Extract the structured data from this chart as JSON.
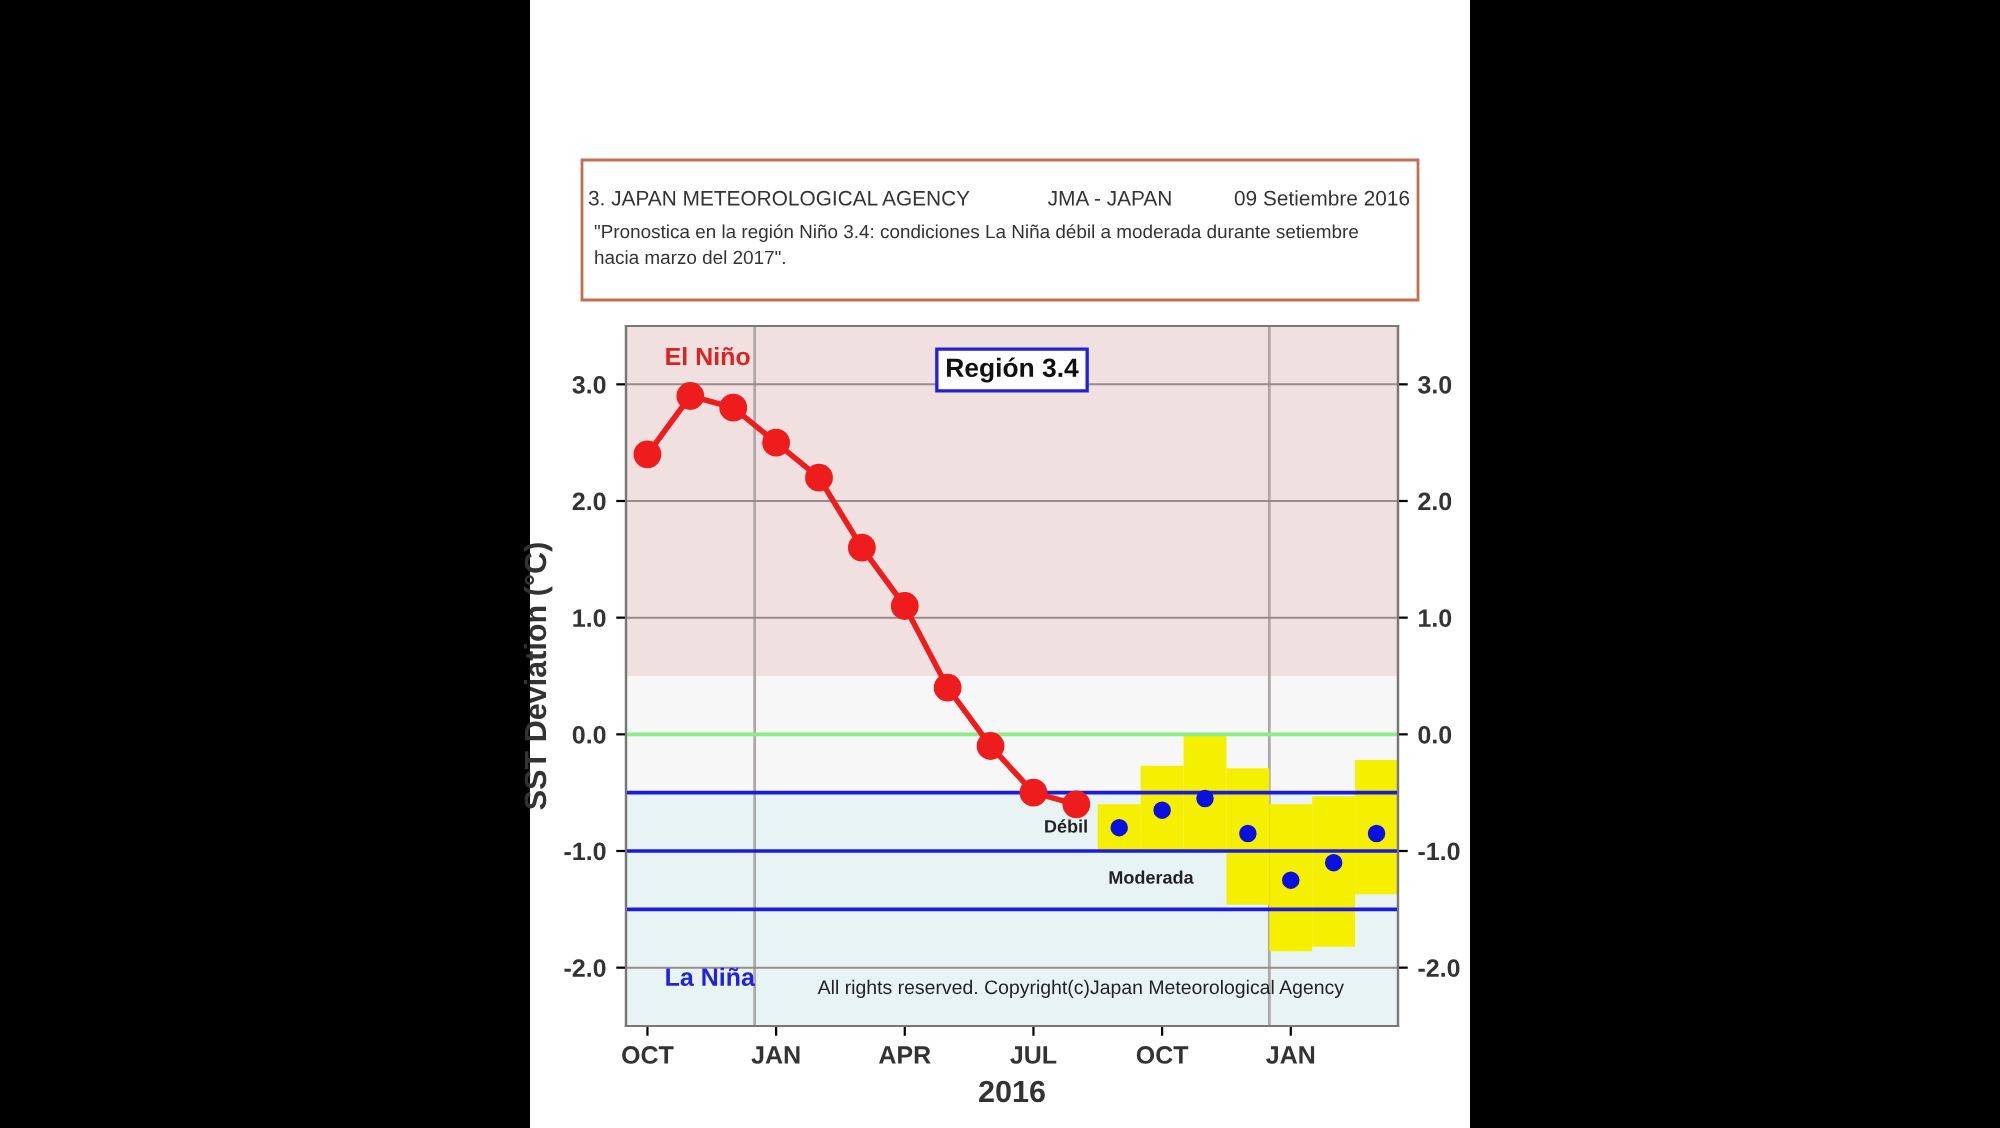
{
  "chart_data": {
    "type": "line",
    "title": "3. JAPAN METEOROLOGICAL AGENCY",
    "subtitle": "\"Pronostica en la región Niño 3.4: condiciones La Niña débil a moderada durante setiembre\nhacia marzo del 2017\".",
    "annotations": [
      "JMA - JAPAN",
      "09 Setiembre 2016",
      "Región 3.4",
      "All rights reserved. Copyright(c)Japan Meteorological Agency",
      "Débil",
      "Moderada"
    ],
    "xlabel": "2016",
    "ylabel": "SST Deviation (°C)",
    "categories": [
      "OCT",
      null,
      null,
      "JAN",
      null,
      null,
      "APR",
      null,
      null,
      "JUL",
      null,
      null,
      "OCT",
      null,
      null,
      "JAN",
      null,
      null
    ],
    "ylim": [
      -2.5,
      3.5
    ],
    "yticks": [
      {
        "value": -2,
        "label": "-2.0"
      },
      {
        "value": -1,
        "label": "-1.0"
      },
      {
        "value": 0,
        "label": "0.0"
      },
      {
        "value": 1,
        "label": "1.0"
      },
      {
        "value": 2,
        "label": "2.0"
      },
      {
        "value": 3,
        "label": "3.0"
      }
    ],
    "y2lim": [
      -2.5,
      3.5
    ],
    "y2ticks": [
      {
        "value": -2,
        "label": "-2.0"
      },
      {
        "value": -1,
        "label": "-1.0"
      },
      {
        "value": 0,
        "label": "0.0"
      },
      {
        "value": 1,
        "label": "1.0"
      },
      {
        "value": 2,
        "label": "2.0"
      },
      {
        "value": 3,
        "label": "3.0"
      }
    ],
    "grid": "y",
    "series": [
      {
        "type": "bar",
        "color": "#f5ef00",
        "base": [
          null,
          null,
          null,
          null,
          null,
          null,
          null,
          null,
          null,
          null,
          null,
          -1.0,
          -1.0,
          -1.0,
          -1.46,
          -1.86,
          -1.82,
          -1.37
        ],
        "values": [
          null,
          null,
          null,
          null,
          null,
          null,
          null,
          null,
          null,
          null,
          null,
          0.4,
          0.73,
          1.0,
          1.17,
          1.26,
          1.29,
          1.15
        ]
      },
      {
        "color": "#ee1c1c",
        "marker": "circle",
        "line_style": "solid",
        "values": [
          2.4,
          2.9,
          2.8,
          2.5,
          2.2,
          1.6,
          1.1,
          0.4,
          -0.1,
          -0.5,
          -0.6,
          null,
          null,
          null,
          null,
          null,
          null,
          null
        ]
      },
      {
        "type": "scatter",
        "color": "#0a10e0",
        "marker": "circle",
        "values": [
          null,
          null,
          null,
          null,
          null,
          null,
          null,
          null,
          null,
          null,
          null,
          -0.8,
          -0.65,
          -0.55,
          -0.85,
          -1.25,
          -1.1,
          -0.85
        ]
      }
    ],
    "bands": [
      {
        "axis": "y",
        "from": 0.5,
        "to": 3.5,
        "label": "El Niño",
        "color": "#f0e0e0"
      },
      {
        "axis": "y",
        "from": -2.5,
        "to": -0.5,
        "label": "La Niña",
        "color": "#e8f4f4"
      }
    ],
    "ref_lines": [
      {
        "axis": "y",
        "value": 0,
        "color": "#88ee88"
      },
      {
        "axis": "y",
        "value": -0.5,
        "color": "#1a1ae0"
      },
      {
        "axis": "y",
        "value": -1.0,
        "color": "#1a1ae0"
      },
      {
        "axis": "y",
        "value": -1.5,
        "color": "#1a1ae0"
      }
    ]
  }
}
